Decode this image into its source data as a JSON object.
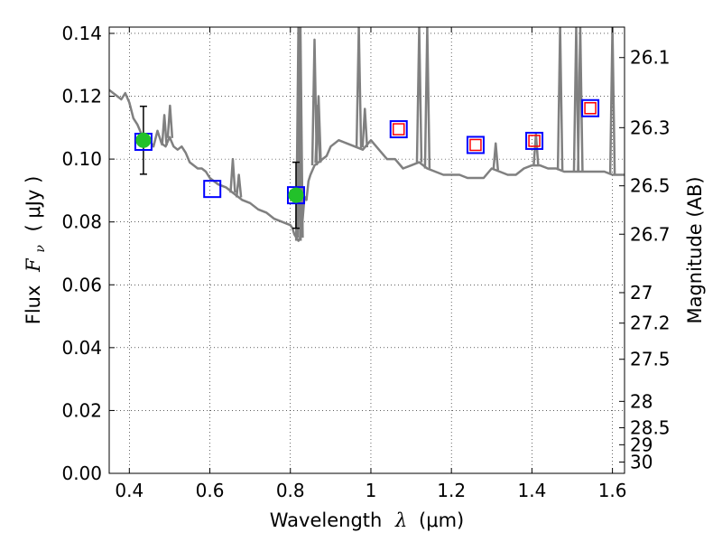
{
  "chart_data": {
    "type": "line",
    "xlabel": {
      "prefix": "Wavelength",
      "symbol": "λ",
      "unit": "(μm)"
    },
    "ylabel": {
      "prefix": "Flux",
      "symbol": "F",
      "subscript": "ν",
      "unit": "( μJy )"
    },
    "y2label": "Magnitude (AB)",
    "xlim": [
      0.35,
      1.63
    ],
    "ylim": [
      0.0,
      0.142
    ],
    "grid": true,
    "x_ticks": [
      {
        "value": 0.4,
        "label": "0.4"
      },
      {
        "value": 0.6,
        "label": "0.6"
      },
      {
        "value": 0.8,
        "label": "0.8"
      },
      {
        "value": 1.0,
        "label": "1"
      },
      {
        "value": 1.2,
        "label": "1.2"
      },
      {
        "value": 1.4,
        "label": "1.4"
      },
      {
        "value": 1.6,
        "label": "1.6"
      }
    ],
    "y_ticks": [
      {
        "value": 0.0,
        "label": "0.00"
      },
      {
        "value": 0.02,
        "label": "0.02"
      },
      {
        "value": 0.04,
        "label": "0.04"
      },
      {
        "value": 0.06,
        "label": "0.06"
      },
      {
        "value": 0.08,
        "label": "0.08"
      },
      {
        "value": 0.1,
        "label": "0.10"
      },
      {
        "value": 0.12,
        "label": "0.12"
      },
      {
        "value": 0.14,
        "label": "0.14"
      }
    ],
    "y2_ticks": [
      {
        "flux": 0.1323,
        "label": "26.1"
      },
      {
        "flux": 0.11,
        "label": "26.3"
      },
      {
        "flux": 0.0915,
        "label": "26.5"
      },
      {
        "flux": 0.0761,
        "label": "26.7"
      },
      {
        "flux": 0.0575,
        "label": "27"
      },
      {
        "flux": 0.0478,
        "label": "27.2"
      },
      {
        "flux": 0.0363,
        "label": "27.5"
      },
      {
        "flux": 0.0229,
        "label": "28"
      },
      {
        "flux": 0.0145,
        "label": "28.5"
      },
      {
        "flux": 0.0091,
        "label": "29"
      },
      {
        "flux": 0.0036,
        "label": "30"
      }
    ],
    "series": [
      {
        "kind": "model-spectrum",
        "color": "#808080",
        "x": [
          0.35,
          0.36,
          0.37,
          0.38,
          0.39,
          0.4,
          0.41,
          0.42,
          0.43,
          0.44,
          0.45,
          0.46,
          0.47,
          0.48,
          0.49,
          0.5,
          0.51,
          0.52,
          0.53,
          0.54,
          0.55,
          0.56,
          0.57,
          0.58,
          0.59,
          0.6,
          0.62,
          0.64,
          0.66,
          0.68,
          0.7,
          0.72,
          0.74,
          0.76,
          0.78,
          0.8,
          0.805,
          0.81,
          0.815,
          0.82,
          0.825,
          0.83,
          0.835,
          0.84,
          0.845,
          0.85,
          0.86,
          0.87,
          0.88,
          0.89,
          0.9,
          0.92,
          0.94,
          0.96,
          0.98,
          1.0,
          1.02,
          1.04,
          1.06,
          1.08,
          1.1,
          1.12,
          1.14,
          1.16,
          1.18,
          1.2,
          1.22,
          1.24,
          1.26,
          1.28,
          1.3,
          1.32,
          1.34,
          1.36,
          1.38,
          1.4,
          1.42,
          1.44,
          1.46,
          1.48,
          1.5,
          1.52,
          1.54,
          1.56,
          1.58,
          1.6,
          1.61,
          1.62,
          1.63
        ],
        "y": [
          0.122,
          0.121,
          0.12,
          0.119,
          0.121,
          0.118,
          0.113,
          0.111,
          0.108,
          0.108,
          0.106,
          0.104,
          0.109,
          0.105,
          0.104,
          0.107,
          0.104,
          0.103,
          0.104,
          0.102,
          0.099,
          0.098,
          0.097,
          0.097,
          0.096,
          0.094,
          0.092,
          0.091,
          0.089,
          0.087,
          0.086,
          0.084,
          0.083,
          0.081,
          0.08,
          0.079,
          0.078,
          0.076,
          0.075,
          0.074,
          0.075,
          0.08,
          0.088,
          0.087,
          0.093,
          0.095,
          0.098,
          0.099,
          0.1,
          0.101,
          0.104,
          0.106,
          0.105,
          0.104,
          0.103,
          0.106,
          0.103,
          0.1,
          0.1,
          0.097,
          0.098,
          0.099,
          0.097,
          0.096,
          0.095,
          0.095,
          0.095,
          0.094,
          0.094,
          0.094,
          0.097,
          0.096,
          0.095,
          0.095,
          0.097,
          0.098,
          0.098,
          0.097,
          0.097,
          0.096,
          0.096,
          0.096,
          0.096,
          0.096,
          0.096,
          0.095,
          0.095,
          0.095,
          0.095
        ]
      },
      {
        "kind": "emission-lines",
        "color": "#808080",
        "lines": [
          {
            "x": 0.487,
            "peak": 0.114
          },
          {
            "x": 0.501,
            "peak": 0.117
          },
          {
            "x": 0.657,
            "peak": 0.1
          },
          {
            "x": 0.672,
            "peak": 0.095
          },
          {
            "x": 0.82,
            "peak": 0.142
          },
          {
            "x": 0.825,
            "peak": 0.142
          },
          {
            "x": 0.86,
            "peak": 0.138
          },
          {
            "x": 0.868,
            "peak": 0.117
          },
          {
            "x": 0.87,
            "peak": 0.12
          },
          {
            "x": 0.97,
            "peak": 0.142
          },
          {
            "x": 0.985,
            "peak": 0.116
          },
          {
            "x": 1.12,
            "peak": 0.142
          },
          {
            "x": 1.14,
            "peak": 0.142
          },
          {
            "x": 1.31,
            "peak": 0.105
          },
          {
            "x": 1.41,
            "peak": 0.108
          },
          {
            "x": 1.47,
            "peak": 0.142
          },
          {
            "x": 1.51,
            "peak": 0.142
          },
          {
            "x": 1.52,
            "peak": 0.142
          },
          {
            "x": 1.6,
            "peak": 0.142
          }
        ]
      },
      {
        "kind": "observed",
        "marker": "circle",
        "color": "#22c12a",
        "points": [
          {
            "x": 0.435,
            "y": 0.106,
            "yerr": 0.0108
          },
          {
            "x": 0.814,
            "y": 0.0885,
            "yerr": 0.0105
          }
        ]
      },
      {
        "kind": "model-photometry-blue",
        "marker": "open-square",
        "color": "#0000ff",
        "points": [
          {
            "x": 0.435,
            "y": 0.1055
          },
          {
            "x": 0.606,
            "y": 0.0905
          },
          {
            "x": 0.814,
            "y": 0.0885
          },
          {
            "x": 1.069,
            "y": 0.1095
          },
          {
            "x": 1.26,
            "y": 0.1045
          },
          {
            "x": 1.406,
            "y": 0.1058
          },
          {
            "x": 1.545,
            "y": 0.1162
          }
        ]
      },
      {
        "kind": "model-photometry-red",
        "marker": "open-square",
        "color": "#ff0000",
        "points": [
          {
            "x": 1.069,
            "y": 0.1095
          },
          {
            "x": 1.26,
            "y": 0.1045
          },
          {
            "x": 1.406,
            "y": 0.1058
          },
          {
            "x": 1.545,
            "y": 0.1162
          }
        ]
      }
    ]
  }
}
